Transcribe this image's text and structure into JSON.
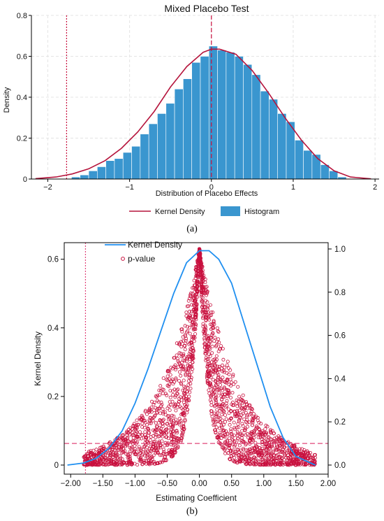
{
  "panel_a_label": "(a)",
  "panel_b_label": "(b)",
  "chart_data": [
    {
      "type": "bar",
      "title": "Mixed Placebo Test",
      "xlabel": "Distribution of Placebo Effects",
      "ylabel": "Density",
      "xlim": [
        -2.2,
        2.05
      ],
      "ylim": [
        0,
        0.8
      ],
      "x_ticks": [
        -2,
        -1,
        0,
        1,
        2
      ],
      "y_ticks": [
        0,
        0.2,
        0.4,
        0.6,
        0.8
      ],
      "tick_labels_x": [
        "−2",
        "−1",
        "0",
        "1",
        "2"
      ],
      "tick_labels_y": [
        "0",
        "0.2",
        "0.4",
        "0.6",
        "0.8"
      ],
      "grid": true,
      "legend_position": "bottom",
      "legend": [
        "Kernel Density",
        "Histogram"
      ],
      "colors": {
        "histogram": "#3a96cf",
        "kernel": "#b5143c",
        "reference": "#c8103e"
      },
      "reference_lines": [
        {
          "x": -1.77,
          "style": "dotted"
        },
        {
          "x": 0.0,
          "style": "dashed"
        }
      ],
      "bin_width": 0.105,
      "bins_left": [
        -1.71,
        -1.605,
        -1.5,
        -1.395,
        -1.29,
        -1.185,
        -1.08,
        -0.975,
        -0.87,
        -0.765,
        -0.66,
        -0.555,
        -0.45,
        -0.345,
        -0.24,
        -0.135,
        -0.03,
        0.075,
        0.18,
        0.285,
        0.39,
        0.495,
        0.6,
        0.705,
        0.81,
        0.915,
        1.02,
        1.125,
        1.23,
        1.335,
        1.44,
        1.545
      ],
      "values": [
        0.01,
        0.02,
        0.04,
        0.06,
        0.09,
        0.1,
        0.13,
        0.16,
        0.22,
        0.27,
        0.32,
        0.37,
        0.44,
        0.49,
        0.57,
        0.6,
        0.65,
        0.63,
        0.62,
        0.6,
        0.56,
        0.51,
        0.43,
        0.39,
        0.32,
        0.28,
        0.19,
        0.14,
        0.12,
        0.07,
        0.04,
        0.01
      ],
      "kernel_density": {
        "name": "Kernel Density",
        "x": [
          -2.15,
          -1.9,
          -1.7,
          -1.5,
          -1.3,
          -1.1,
          -0.9,
          -0.7,
          -0.5,
          -0.3,
          -0.1,
          0.0,
          0.1,
          0.3,
          0.5,
          0.7,
          0.9,
          1.1,
          1.3,
          1.5,
          1.7,
          1.95
        ],
        "y": [
          0.002,
          0.01,
          0.025,
          0.05,
          0.09,
          0.15,
          0.23,
          0.33,
          0.45,
          0.55,
          0.62,
          0.635,
          0.635,
          0.61,
          0.53,
          0.42,
          0.3,
          0.19,
          0.1,
          0.04,
          0.01,
          0.001
        ]
      }
    },
    {
      "type": "scatter",
      "xlabel": "Estimating Coefficient",
      "ylabel": "Kernel Density",
      "xlim": [
        -2.1,
        2.0
      ],
      "ylim_left": [
        0,
        0.63
      ],
      "ylim_right": [
        0,
        1.0
      ],
      "x_ticks": [
        -2,
        -1.5,
        -1,
        -0.5,
        0,
        0.5,
        1,
        1.5,
        2
      ],
      "y_ticks_left": [
        0,
        0.2,
        0.4,
        0.6
      ],
      "y_ticks_right": [
        0,
        0.2,
        0.4,
        0.6,
        0.8,
        1.0
      ],
      "tick_labels_x": [
        "−2.00",
        "−1.50",
        "−1.00",
        "−0.50",
        "0.00",
        "0.50",
        "1.00",
        "1.50",
        "2.00"
      ],
      "tick_labels_y_left": [
        "0",
        "0.2",
        "0.4",
        "0.6"
      ],
      "tick_labels_y_right": [
        "0.0",
        "0.2",
        "0.4",
        "0.6",
        "0.8",
        "1.0"
      ],
      "grid": false,
      "legend_position": "top-left",
      "legend": [
        "Kernel Density",
        "p-value"
      ],
      "colors": {
        "kernel": "#1f8ff0",
        "pvalue": "#c8103e",
        "reference": "#e0457a"
      },
      "reference_lines": [
        {
          "x": -1.77,
          "style": "dotted"
        },
        {
          "y_right": 0.1,
          "style": "dashed"
        }
      ],
      "kernel_density": {
        "name": "Kernel Density",
        "x": [
          -2.05,
          -1.8,
          -1.6,
          -1.4,
          -1.2,
          -1.0,
          -0.8,
          -0.6,
          -0.4,
          -0.2,
          0.0,
          0.15,
          0.3,
          0.5,
          0.7,
          0.9,
          1.1,
          1.3,
          1.5,
          1.8
        ],
        "y": [
          0.0,
          0.006,
          0.02,
          0.05,
          0.1,
          0.18,
          0.28,
          0.39,
          0.5,
          0.59,
          0.625,
          0.625,
          0.6,
          0.53,
          0.41,
          0.29,
          0.17,
          0.08,
          0.025,
          0.0
        ]
      },
      "p_value_envelope": {
        "name": "p-value",
        "peak": [
          0.0,
          1.0
        ],
        "x_range": [
          -2.05,
          1.85
        ],
        "outer_decay": 0.62,
        "inner_decay": 0.13,
        "n_points": 2400
      }
    }
  ]
}
